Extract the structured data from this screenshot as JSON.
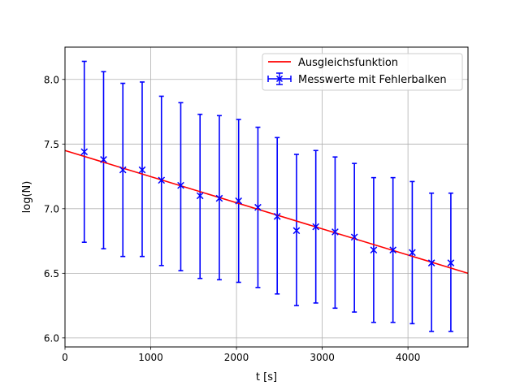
{
  "chart_data": {
    "type": "scatter",
    "title": "",
    "xlabel": "t [s]",
    "ylabel": "log(N)",
    "xlim": [
      0,
      4700
    ],
    "ylim": [
      5.93,
      8.25
    ],
    "xticks": [
      0,
      1000,
      2000,
      3000,
      4000
    ],
    "yticks": [
      6.0,
      6.5,
      7.0,
      7.5,
      8.0
    ],
    "xtick_labels": [
      "0",
      "1000",
      "2000",
      "3000",
      "4000"
    ],
    "ytick_labels": [
      "6.0",
      "6.5",
      "7.0",
      "7.5",
      "8.0"
    ],
    "grid": true,
    "legend_position": "top-right",
    "legend": {
      "fit_label": "Ausgleichsfunktion",
      "points_label": "Messwerte mit Fehlerbalken"
    },
    "fit_line": {
      "name": "Ausgleichsfunktion",
      "color": "#ff0000",
      "x": [
        0,
        4700
      ],
      "y": [
        7.45,
        6.5
      ]
    },
    "series": [
      {
        "name": "Messwerte mit Fehlerbalken",
        "color": "#0000ff",
        "marker": "x",
        "x": [
          225,
          450,
          675,
          900,
          1125,
          1350,
          1575,
          1800,
          2025,
          2250,
          2475,
          2700,
          2925,
          3150,
          3375,
          3600,
          3825,
          4050,
          4275,
          4500
        ],
        "y": [
          7.44,
          7.38,
          7.3,
          7.3,
          7.22,
          7.18,
          7.1,
          7.08,
          7.06,
          7.01,
          6.94,
          6.83,
          6.86,
          6.82,
          6.78,
          6.68,
          6.68,
          6.66,
          6.58,
          6.58
        ],
        "ylow": [
          6.74,
          6.69,
          6.63,
          6.63,
          6.56,
          6.52,
          6.46,
          6.45,
          6.43,
          6.39,
          6.34,
          6.25,
          6.27,
          6.23,
          6.2,
          6.12,
          6.12,
          6.11,
          6.05,
          6.05
        ],
        "yhigh": [
          8.14,
          8.06,
          7.97,
          7.98,
          7.87,
          7.82,
          7.73,
          7.72,
          7.69,
          7.63,
          7.55,
          7.42,
          7.45,
          7.4,
          7.35,
          7.24,
          7.24,
          7.21,
          7.12,
          7.12
        ]
      }
    ]
  }
}
